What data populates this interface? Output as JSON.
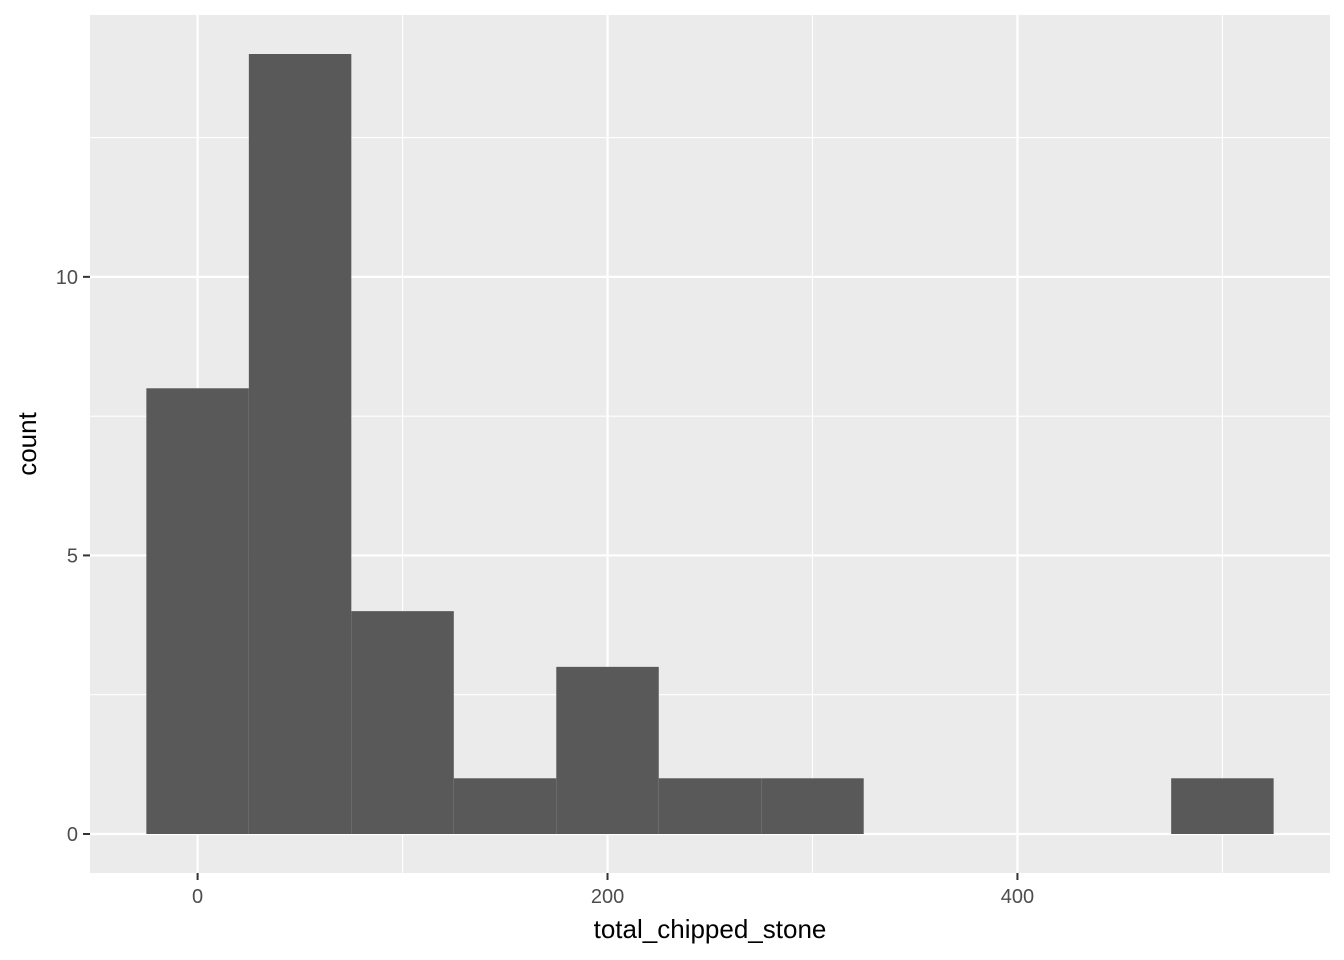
{
  "chart_data": {
    "type": "bar",
    "xlabel": "total_chipped_stone",
    "ylabel": "count",
    "bin_width": 50,
    "bins": [
      {
        "start": -25,
        "end": 25,
        "count": 8
      },
      {
        "start": 25,
        "end": 75,
        "count": 14
      },
      {
        "start": 75,
        "end": 125,
        "count": 4
      },
      {
        "start": 125,
        "end": 175,
        "count": 1
      },
      {
        "start": 175,
        "end": 225,
        "count": 3
      },
      {
        "start": 225,
        "end": 275,
        "count": 1
      },
      {
        "start": 275,
        "end": 325,
        "count": 1
      },
      {
        "start": 325,
        "end": 375,
        "count": 0
      },
      {
        "start": 375,
        "end": 425,
        "count": 0
      },
      {
        "start": 425,
        "end": 475,
        "count": 0
      },
      {
        "start": 475,
        "end": 525,
        "count": 1
      }
    ],
    "xlim": [
      -52.5,
      552.5
    ],
    "ylim": [
      -0.7,
      14.7
    ],
    "x_ticks": [
      0,
      200,
      400
    ],
    "x_minor_ticks": [
      100,
      300,
      500
    ],
    "y_ticks": [
      0,
      5,
      10
    ],
    "y_minor_ticks": [
      2.5,
      7.5,
      12.5
    ],
    "grid": true,
    "colors": {
      "bar": "#595959",
      "panel": "#ebebeb",
      "grid": "#ffffff",
      "tick_text": "#4d4d4d",
      "axis_title": "#000000"
    }
  }
}
